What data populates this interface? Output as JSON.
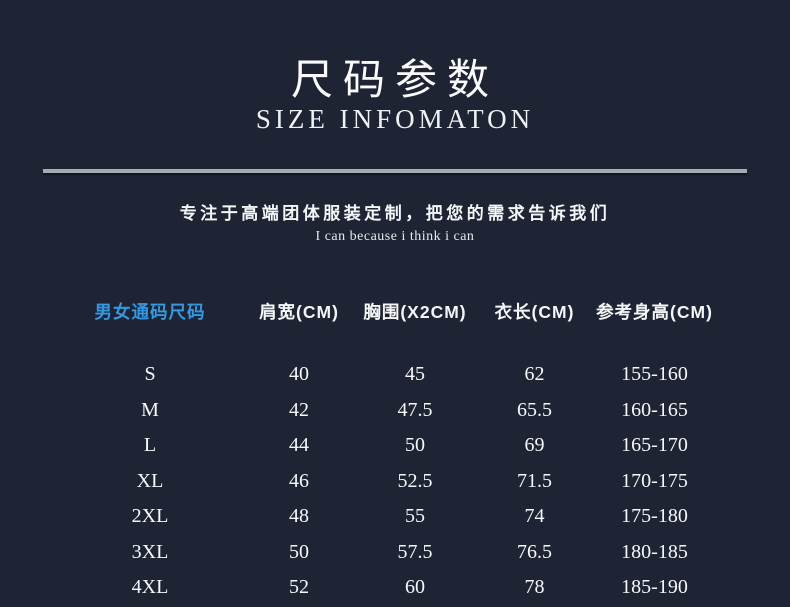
{
  "page": {
    "background": "#1e2433",
    "accent_blue": "#3399e0",
    "divider_color": "#a6abb2"
  },
  "header": {
    "title_cn": "尺码参数",
    "title_en": "SIZE INFOMATON"
  },
  "tagline": {
    "line_cn": "专注于高端团体服装定制，把您的需求告诉我们",
    "line_en": "I can because i think i can"
  },
  "chart_data": {
    "type": "table",
    "title": "尺码参数 (SIZE INFOMATON)",
    "columns": [
      "男女通码尺码",
      "肩宽(CM)",
      "胸围(X2CM)",
      "衣长(CM)",
      "参考身高(CM)"
    ],
    "rows": [
      [
        "S",
        "40",
        "45",
        "62",
        "155-160"
      ],
      [
        "M",
        "42",
        "47.5",
        "65.5",
        "160-165"
      ],
      [
        "L",
        "44",
        "50",
        "69",
        "165-170"
      ],
      [
        "XL",
        "46",
        "52.5",
        "71.5",
        "170-175"
      ],
      [
        "2XL",
        "48",
        "55",
        "74",
        "175-180"
      ],
      [
        "3XL",
        "50",
        "57.5",
        "76.5",
        "180-185"
      ],
      [
        "4XL",
        "52",
        "60",
        "78",
        "185-190"
      ]
    ]
  }
}
